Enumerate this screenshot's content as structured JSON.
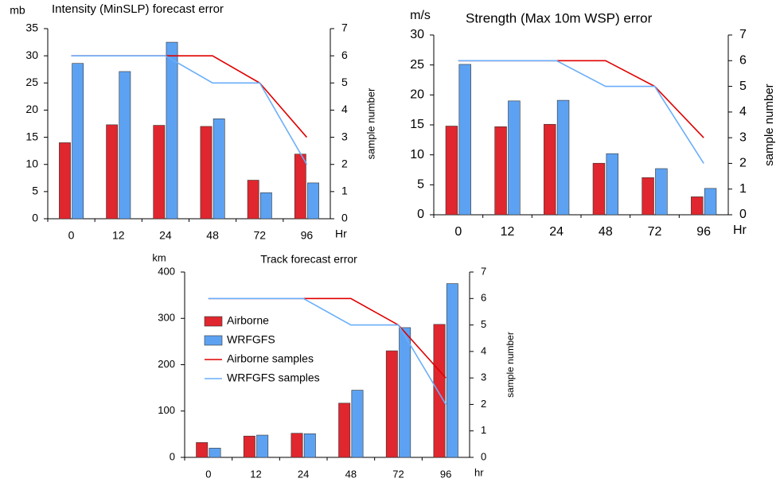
{
  "chart_data": [
    {
      "type": "bar",
      "title": "Intensity (MinSLP) forecast error",
      "y_label": "mb",
      "y2_label": "sample number",
      "x_label": "Hr",
      "categories": [
        "0",
        "12",
        "24",
        "48",
        "72",
        "96"
      ],
      "series": [
        {
          "type": "bar",
          "color": "#e0262e",
          "values": [
            14,
            17.3,
            17.2,
            17,
            7.1,
            11.9
          ]
        },
        {
          "type": "bar",
          "color": "#5da2f2",
          "values": [
            28.6,
            27.1,
            32.5,
            18.4,
            4.8,
            6.6
          ]
        },
        {
          "type": "line",
          "axis": "y2",
          "color": "#e00000",
          "values": [
            6,
            6,
            6,
            6,
            5,
            3
          ]
        },
        {
          "type": "line",
          "axis": "y2",
          "color": "#6aaefa",
          "values": [
            6,
            6,
            6,
            5,
            5,
            2
          ]
        }
      ],
      "ylim": [
        0,
        35
      ],
      "yticks": [
        0,
        5,
        10,
        15,
        20,
        25,
        30,
        35
      ],
      "y2lim": [
        0,
        7
      ],
      "y2ticks": [
        0,
        1,
        2,
        3,
        4,
        5,
        6,
        7
      ]
    },
    {
      "type": "bar",
      "title": "Strength (Max 10m WSP) error",
      "y_label": "m/s",
      "y2_label": "sample number",
      "x_label": "Hr",
      "categories": [
        "0",
        "12",
        "24",
        "48",
        "72",
        "96"
      ],
      "series": [
        {
          "type": "bar",
          "color": "#e0262e",
          "values": [
            14.8,
            14.7,
            15.1,
            8.6,
            6.2,
            3.0
          ]
        },
        {
          "type": "bar",
          "color": "#5da2f2",
          "values": [
            25.1,
            19,
            19.1,
            10.2,
            7.7,
            4.4
          ]
        },
        {
          "type": "line",
          "axis": "y2",
          "color": "#e00000",
          "values": [
            6,
            6,
            6,
            6,
            5,
            3
          ]
        },
        {
          "type": "line",
          "axis": "y2",
          "color": "#6aaefa",
          "values": [
            6,
            6,
            6,
            5,
            5,
            2
          ]
        }
      ],
      "ylim": [
        0,
        30
      ],
      "yticks": [
        0,
        5,
        10,
        15,
        20,
        25,
        30
      ],
      "y2lim": [
        0,
        7
      ],
      "y2ticks": [
        0,
        1,
        2,
        3,
        4,
        5,
        6,
        7
      ]
    },
    {
      "type": "bar",
      "title": "Track forecast error",
      "y_label": "km",
      "y2_label": "sample number",
      "x_label": "hr",
      "categories": [
        "0",
        "12",
        "24",
        "48",
        "72",
        "96"
      ],
      "series": [
        {
          "type": "bar",
          "name": "Airborne",
          "color": "#e0262e",
          "values": [
            32,
            46,
            52,
            117,
            230,
            287
          ]
        },
        {
          "type": "bar",
          "name": "WRFGFS",
          "color": "#5da2f2",
          "values": [
            20,
            48,
            51,
            145,
            280,
            375
          ]
        },
        {
          "type": "line",
          "axis": "y2",
          "name": "Airborne samples",
          "color": "#e00000",
          "values": [
            6,
            6,
            6,
            6,
            5,
            3
          ]
        },
        {
          "type": "line",
          "axis": "y2",
          "name": "WRFGFS samples",
          "color": "#6aaefa",
          "values": [
            6,
            6,
            6,
            5,
            5,
            2
          ]
        }
      ],
      "ylim": [
        0,
        400
      ],
      "yticks": [
        0,
        100,
        200,
        300,
        400
      ],
      "y2lim": [
        0,
        7
      ],
      "y2ticks": [
        0,
        1,
        2,
        3,
        4,
        5,
        6,
        7
      ],
      "legend": "upper left"
    }
  ]
}
